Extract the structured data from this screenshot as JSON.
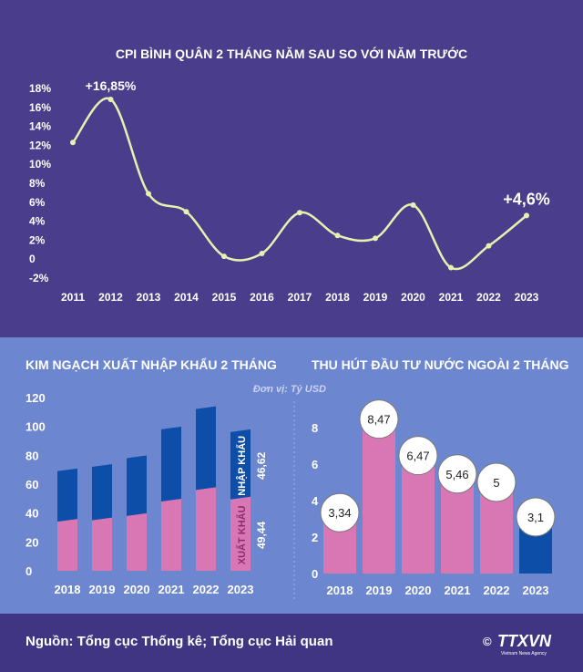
{
  "chart_data": [
    {
      "type": "line",
      "title": "CPI BÌNH QUÂN 2 THÁNG NĂM SAU SO VỚI NĂM TRƯỚC",
      "x": [
        "2011",
        "2012",
        "2013",
        "2014",
        "2015",
        "2016",
        "2017",
        "2018",
        "2019",
        "2020",
        "2021",
        "2022",
        "2023"
      ],
      "values": [
        12.3,
        16.85,
        6.9,
        5.0,
        0.3,
        0.6,
        4.9,
        2.5,
        2.2,
        5.7,
        -0.9,
        1.4,
        4.6
      ],
      "yticks": [
        "18%",
        "16%",
        "14%",
        "12%",
        "10%",
        "8%",
        "6%",
        "4%",
        "2%",
        "0",
        "-2%"
      ],
      "ylim": [
        -2,
        18
      ],
      "annotations": [
        {
          "index": 1,
          "text": "+16,85%"
        },
        {
          "index": 12,
          "text": "+4,6%"
        }
      ],
      "color": "#e8f0b0"
    },
    {
      "type": "bar",
      "title": "KIM NGẠCH XUẤT NHẬP KHẨU 2 THÁNG",
      "unit_note": "Đơn vị: Tỷ USD",
      "categories": [
        "2018",
        "2019",
        "2020",
        "2021",
        "2022",
        "2023"
      ],
      "series": [
        {
          "name": "XUẤT KHẨU",
          "values": [
            34,
            35,
            38,
            48,
            56,
            49.44
          ],
          "color": "#d977b5"
        },
        {
          "name": "NHẬP KHẨU",
          "values": [
            35,
            37,
            40,
            50,
            56,
            46.62
          ],
          "color": "#0d4fa8"
        }
      ],
      "yticks": [
        "120",
        "100",
        "80",
        "60",
        "40",
        "20",
        "0"
      ],
      "ylim": [
        0,
        120
      ],
      "labels": {
        "export_label": "XUẤT KHẨU",
        "import_label": "NHẬP KHẨU",
        "export_value": "49,44",
        "import_value": "46,62"
      }
    },
    {
      "type": "bar",
      "title": "THU HÚT ĐẦU TƯ NƯỚC NGOÀI 2 THÁNG",
      "categories": [
        "2018",
        "2019",
        "2020",
        "2021",
        "2022",
        "2023"
      ],
      "values": [
        3.34,
        8.47,
        6.47,
        5.46,
        5,
        3.1
      ],
      "value_labels": [
        "3,34",
        "8,47",
        "6,47",
        "5,46",
        "5",
        "3,1"
      ],
      "yticks": [
        "8",
        "6",
        "4",
        "2",
        "0"
      ],
      "ylim": [
        0,
        9
      ],
      "colors": [
        "#d977b5",
        "#d977b5",
        "#d977b5",
        "#d977b5",
        "#d977b5",
        "#0d4fa8"
      ]
    }
  ],
  "footer": {
    "source": "Nguồn: Tổng cục Thống kê; Tổng cục Hải quan",
    "logo_text": "TTXVN",
    "logo_symbol": "©",
    "logo_subtitle": "Vietnam News Agency"
  }
}
